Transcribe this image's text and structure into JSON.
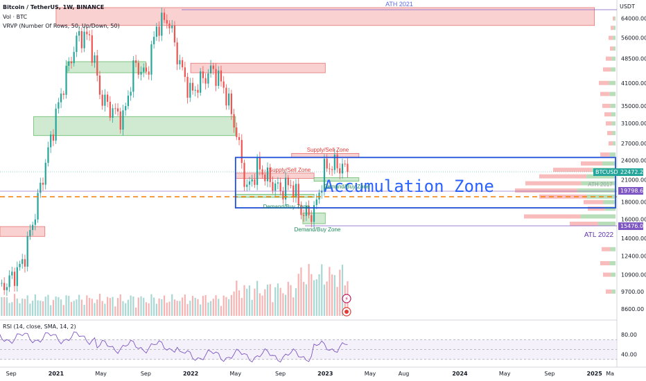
{
  "header": {
    "symbol_line": "Bitcoin / TetherUS, 1W, BINANCE",
    "vol_line": "Vol · BTC",
    "vrvp_line": "VRVP (Number Of Rows, 50, Up/Down, 50)",
    "rsi_line": "RSI (14, close, SMA, 14, 2)"
  },
  "price_scale": {
    "unit": "USDT",
    "ticks": [
      "64000.00",
      "56000.00",
      "48500.00",
      "41000.00",
      "35000.00",
      "31000.00",
      "27000.00",
      "24000.00",
      "21000.00",
      "18000.00",
      "16000.00",
      "14000.00",
      "12400.00",
      "10900.00",
      "9700.00",
      "8600.00"
    ]
  },
  "rsi_scale": {
    "ticks": [
      "80.00",
      "40.00"
    ]
  },
  "time_axis": {
    "labels": [
      "Sep",
      "2021",
      "May",
      "Sep",
      "2022",
      "May",
      "Sep",
      "2023",
      "May",
      "Aug",
      "2024",
      "May",
      "Sep",
      "2025",
      "Ma"
    ]
  },
  "price_tags": [
    {
      "key": "current",
      "label": "BTCUSDT",
      "value": "22472.25",
      "color": "#26a69a"
    },
    {
      "key": "ath",
      "label": "",
      "value": "19798.68",
      "color": "#7e57c2"
    },
    {
      "key": "atl",
      "label": "",
      "value": "15476.00",
      "color": "#7e57c2"
    }
  ],
  "annotations": {
    "ath": "ATH 2021",
    "atl": "ATL 2022",
    "accumulation": "Accumulation Zone",
    "supply1": "Supply/Sell Zone",
    "supply2": "Supply/Sell Zone",
    "demand1": "Demand/Buy Zone",
    "demand2": "Demand/Buy Zone",
    "demand3": "Demand/Buy Zone",
    "ath_ghost": "ATH 2017"
  },
  "chart_data": {
    "type": "candlestick",
    "symbol": "BTCUSDT",
    "interval": "1W",
    "exchange": "BINANCE",
    "scale": "log",
    "ylim": [
      8200,
      70000
    ],
    "x_range": [
      "2020-07",
      "2025-03"
    ],
    "last_price": 22472.25,
    "ath_2021": 69000,
    "atl_2022": 15476,
    "ath_2017_level": 19798.68,
    "price_path": [
      [
        "2020-07",
        9200
      ],
      [
        "2020-09",
        10600
      ],
      [
        "2020-10",
        11800
      ],
      [
        "2020-11",
        16000
      ],
      [
        "2020-12",
        23000
      ],
      [
        "2021-01",
        33000
      ],
      [
        "2021-02",
        45000
      ],
      [
        "2021-03",
        57000
      ],
      [
        "2021-04",
        56000
      ],
      [
        "2021-05",
        37000
      ],
      [
        "2021-06",
        34000
      ],
      [
        "2021-07",
        32000
      ],
      [
        "2021-08",
        47000
      ],
      [
        "2021-09",
        43000
      ],
      [
        "2021-10",
        61000
      ],
      [
        "2021-11",
        64000
      ],
      [
        "2021-12",
        47000
      ],
      [
        "2022-01",
        38000
      ],
      [
        "2022-02",
        42000
      ],
      [
        "2022-03",
        45000
      ],
      [
        "2022-04",
        39500
      ],
      [
        "2022-05",
        30000
      ],
      [
        "2022-06",
        19500
      ],
      [
        "2022-07",
        23000
      ],
      [
        "2022-08",
        21000
      ],
      [
        "2022-09",
        19500
      ],
      [
        "2022-10",
        20500
      ],
      [
        "2022-11",
        16500
      ],
      [
        "2022-12",
        16800
      ],
      [
        "2023-01",
        23000
      ],
      [
        "2023-02",
        23300
      ],
      [
        "2023-03",
        22472
      ]
    ],
    "zones": [
      {
        "name": "Supply/Sell Zone",
        "kind": "supply",
        "from": "2021-01",
        "to": "2025-01",
        "low": 61000,
        "high": 69000
      },
      {
        "name": "",
        "kind": "demand",
        "from": "2021-02",
        "to": "2021-09",
        "low": 44000,
        "high": 47500
      },
      {
        "name": "",
        "kind": "supply",
        "from": "2022-01",
        "to": "2023-01",
        "low": 44000,
        "high": 47000
      },
      {
        "name": "",
        "kind": "demand",
        "from": "2020-11",
        "to": "2022-05",
        "low": 28500,
        "high": 32500
      },
      {
        "name": "Supply/Sell Zone",
        "kind": "supply",
        "from": "2022-10",
        "to": "2023-04",
        "low": 24500,
        "high": 25200
      },
      {
        "name": "Supply/Sell Zone",
        "kind": "supply",
        "from": "2022-05",
        "to": "2022-12",
        "low": 21200,
        "high": 22000
      },
      {
        "name": "Demand/Buy Zone",
        "kind": "demand",
        "from": "2022-12",
        "to": "2023-04",
        "low": 20800,
        "high": 21300
      },
      {
        "name": "Demand/Buy Zone",
        "kind": "demand",
        "from": "2022-05",
        "to": "2022-12",
        "low": 18600,
        "high": 19000
      },
      {
        "name": "Demand/Buy Zone",
        "kind": "demand",
        "from": "2022-11",
        "to": "2023-01",
        "low": 15500,
        "high": 16700
      },
      {
        "name": "",
        "kind": "supply",
        "from": "2020-03",
        "to": "2020-12",
        "low": 14200,
        "high": 15200
      }
    ],
    "accumulation_zone": {
      "name": "Accumulation Zone",
      "from": "2022-05",
      "to": "2025-03",
      "low": 17300,
      "high": 24500
    },
    "rsi": {
      "length": 14,
      "source": "close",
      "smoothing": "SMA",
      "upper": 70,
      "lower": 30,
      "ylim": [
        20,
        90
      ]
    }
  },
  "colors": {
    "up": "#26a69a",
    "down": "#ef5350",
    "supply_fill": "#f8c9c9",
    "demand_fill": "#c8e6c9",
    "accumulation_border": "#1e4fd6",
    "accumulation_text": "#2962ff",
    "level_line": "#7e57c2",
    "orange_dash": "#f57c00",
    "rsi_line": "#7e57c2",
    "rsi_band": "#ede7f6"
  }
}
